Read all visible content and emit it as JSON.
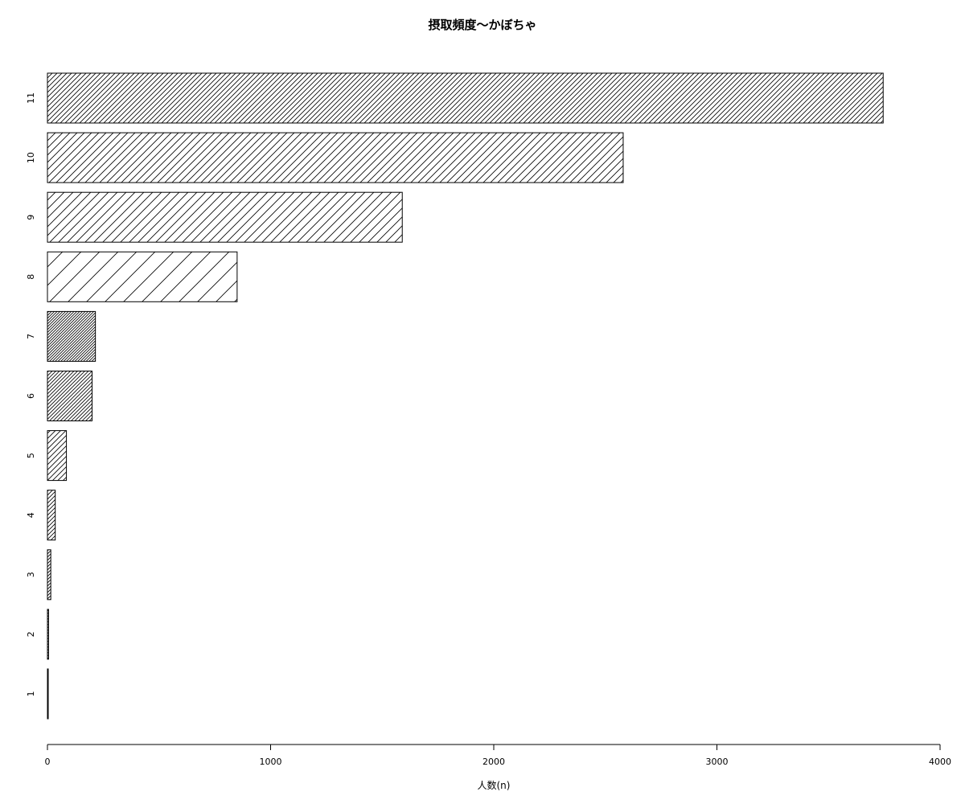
{
  "chart_data": {
    "type": "bar",
    "orientation": "horizontal",
    "title": "摂取頻度～かぼちゃ",
    "xlabel": "人数(n)",
    "ylabel": "",
    "categories": [
      "1",
      "2",
      "3",
      "4",
      "5",
      "6",
      "7",
      "8",
      "9",
      "10",
      "11"
    ],
    "values": [
      2,
      5,
      15,
      35,
      85,
      200,
      215,
      850,
      1590,
      2580,
      3745
    ],
    "xlim": [
      0,
      4000
    ],
    "xticks": [
      0,
      1000,
      2000,
      3000,
      4000
    ],
    "fill": "diagonal hatching",
    "grid": false,
    "legend": "none",
    "colors": {
      "stroke": "#000000",
      "background": "#ffffff"
    }
  }
}
